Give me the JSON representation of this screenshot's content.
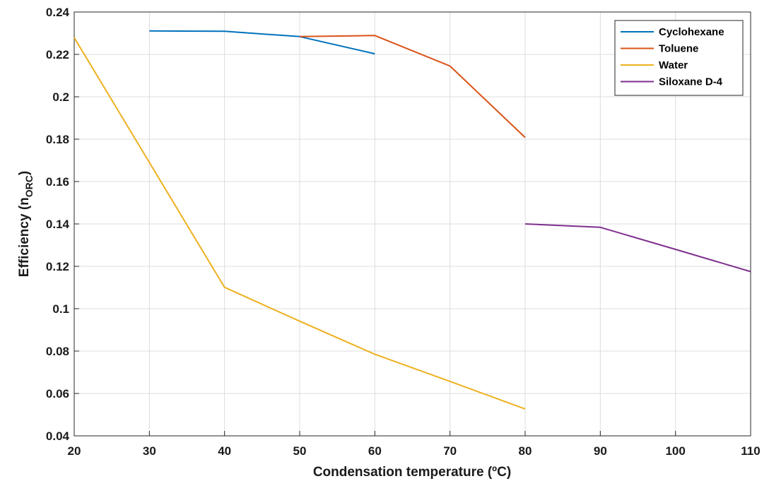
{
  "chart_data": {
    "type": "line",
    "xlabel": "Condensation  temperature (ºC)",
    "ylabel": {
      "main": "Efficiency (n",
      "sub": "ORC",
      "close": ")"
    },
    "xlim": [
      20,
      110
    ],
    "ylim": [
      0.04,
      0.24
    ],
    "xticks": [
      20,
      30,
      40,
      50,
      60,
      70,
      80,
      90,
      100,
      110
    ],
    "yticks": [
      0.04,
      0.06,
      0.08,
      0.1,
      0.12,
      0.14,
      0.16,
      0.18,
      0.2,
      0.22,
      0.24
    ],
    "xtick_labels": [
      "20",
      "30",
      "40",
      "50",
      "60",
      "70",
      "80",
      "90",
      "100",
      "110"
    ],
    "ytick_labels": [
      "0.04",
      "0.06",
      "0.08",
      "0.1",
      "0.12",
      "0.14",
      "0.16",
      "0.18",
      "0.2",
      "0.22",
      "0.24"
    ],
    "grid": true,
    "legend_position": "top-right",
    "series": [
      {
        "name": "Cyclohexane",
        "color": "#0072BD",
        "x": [
          30,
          40,
          50,
          60
        ],
        "y": [
          0.2311,
          0.2309,
          0.2284,
          0.2203
        ]
      },
      {
        "name": "Toluene",
        "color": "#D95319",
        "x": [
          50,
          60,
          70,
          80
        ],
        "y": [
          0.2284,
          0.2289,
          0.2145,
          0.1808
        ]
      },
      {
        "name": "Water",
        "color": "#EDB120",
        "x": [
          20,
          30,
          40,
          50,
          60,
          70,
          80
        ],
        "y": [
          0.2279,
          0.169,
          0.1101,
          0.0941,
          0.0785,
          0.0657,
          0.0527
        ]
      },
      {
        "name": "Siloxane D-4",
        "color": "#7E2F8E",
        "x": [
          80,
          90,
          100,
          110
        ],
        "y": [
          0.14,
          0.1384,
          0.128,
          0.1175
        ]
      }
    ]
  }
}
